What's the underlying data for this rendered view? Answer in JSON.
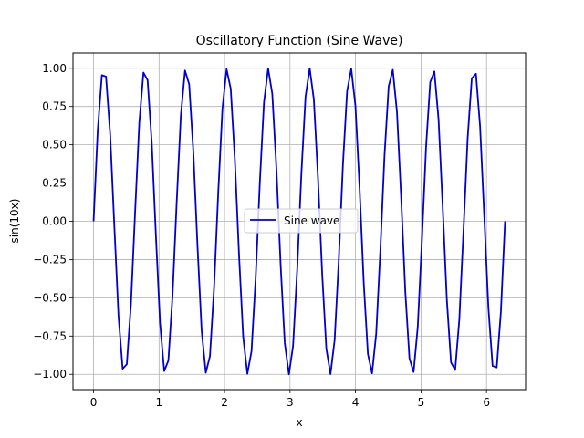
{
  "chart_data": {
    "type": "line",
    "title": "Oscillatory Function (Sine Wave)",
    "xlabel": "x",
    "ylabel": "sin(10x)",
    "xlim": [
      -0.314,
      6.597
    ],
    "ylim": [
      -1.1,
      1.1
    ],
    "xticks": [
      0,
      1,
      2,
      3,
      4,
      5,
      6
    ],
    "xtick_labels": [
      "0",
      "1",
      "2",
      "3",
      "4",
      "5",
      "6"
    ],
    "yticks": [
      -1.0,
      -0.75,
      -0.5,
      -0.25,
      0.0,
      0.25,
      0.5,
      0.75,
      1.0
    ],
    "ytick_labels": [
      "−1.00",
      "−0.75",
      "−0.50",
      "−0.25",
      "0.00",
      "0.25",
      "0.50",
      "0.75",
      "1.00"
    ],
    "grid": true,
    "legend_position": "center",
    "series": [
      {
        "name": "Sine wave",
        "color": "#0000cc",
        "function": "sin(10x)",
        "x_start": 0,
        "x_end": 6.283185,
        "n_points": 100
      }
    ]
  },
  "legend": {
    "label": "Sine wave"
  }
}
